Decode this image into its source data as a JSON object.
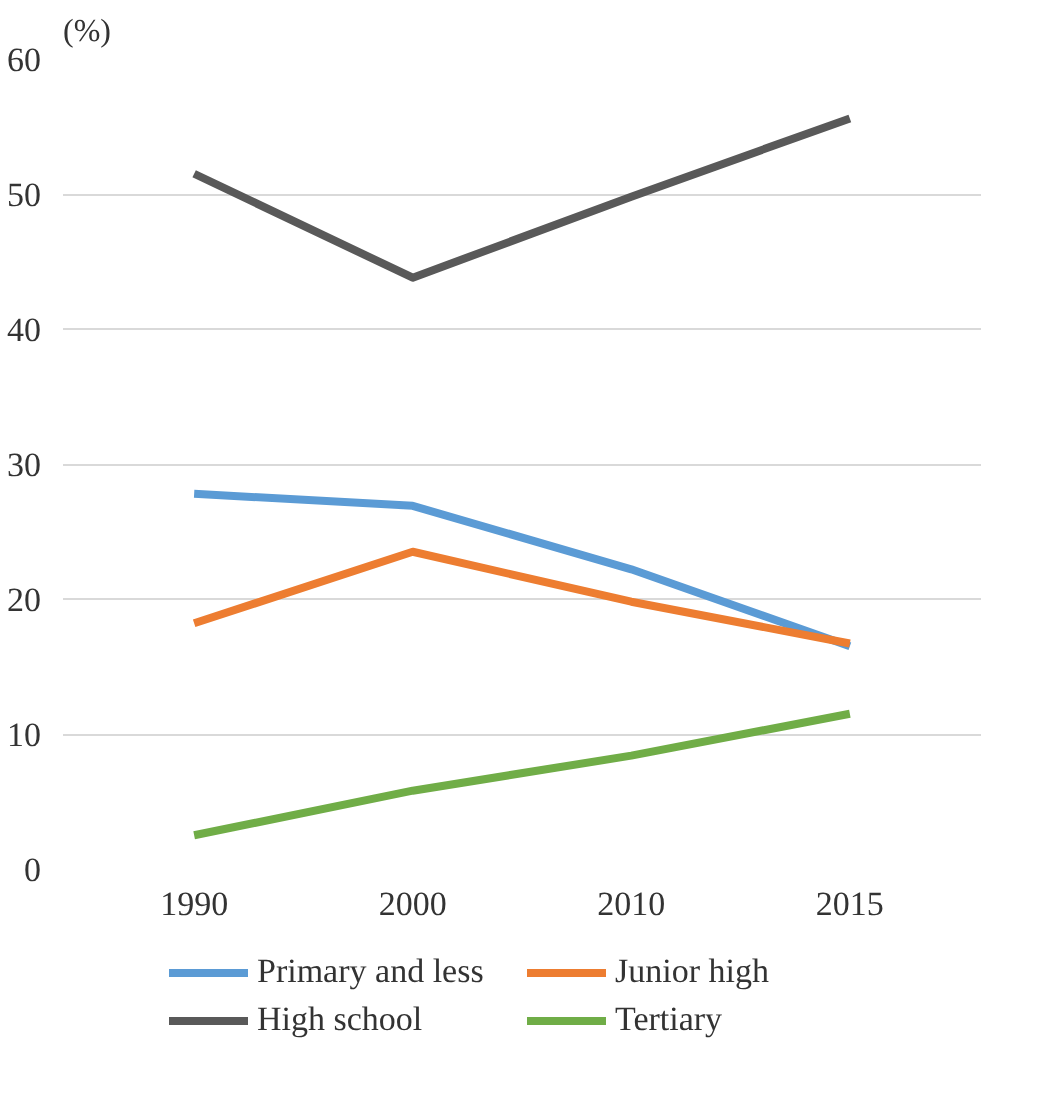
{
  "chart_data": {
    "type": "line",
    "ylabel": "(%)",
    "categories": [
      "1990",
      "2000",
      "2010",
      "2015"
    ],
    "series": [
      {
        "name": "Primary and less",
        "color": "#5b9bd5",
        "values": [
          27.8,
          26.9,
          22.2,
          16.5
        ]
      },
      {
        "name": "Junior high",
        "color": "#ed7d31",
        "values": [
          18.2,
          23.5,
          19.8,
          16.7
        ]
      },
      {
        "name": "High school",
        "color": "#595959",
        "values": [
          51.5,
          43.8,
          49.8,
          55.6
        ]
      },
      {
        "name": "Tertiary",
        "color": "#70ad47",
        "values": [
          2.5,
          5.8,
          8.4,
          11.5
        ]
      }
    ],
    "ylim": [
      0,
      60
    ],
    "yticks": [
      0,
      10,
      20,
      30,
      40,
      50,
      60
    ],
    "grid": "y",
    "legend": "bottom",
    "marker": "none",
    "line_style": "solid"
  }
}
